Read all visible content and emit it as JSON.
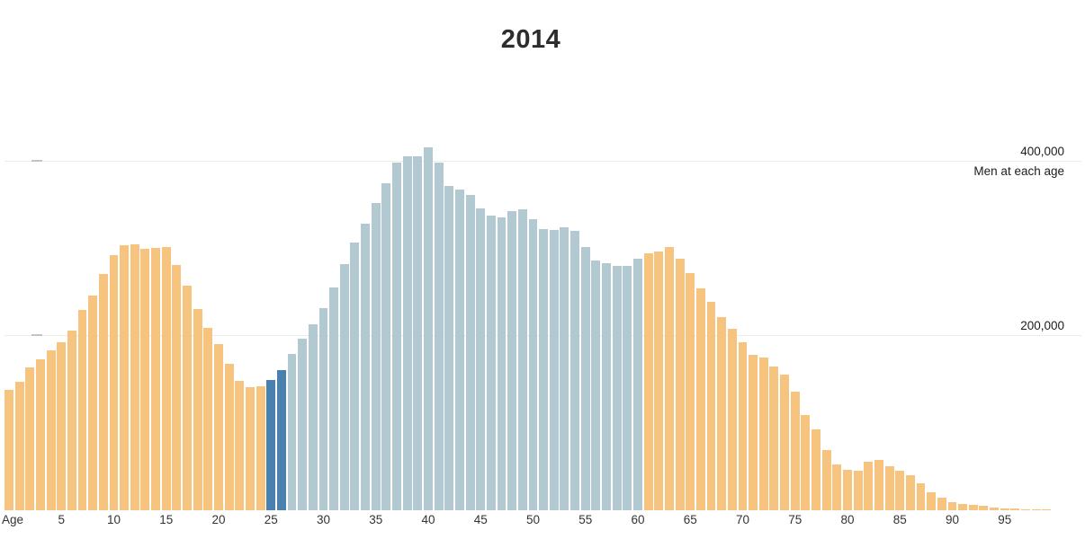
{
  "chart_data": {
    "type": "bar",
    "title": "2014",
    "x_origin_label": "Age",
    "x_tick_ages": [
      5,
      10,
      15,
      20,
      25,
      30,
      35,
      40,
      45,
      50,
      55,
      60,
      65,
      70,
      75,
      80,
      85,
      90,
      95
    ],
    "x_tick_labels": [
      "5",
      "10",
      "15",
      "20",
      "25",
      "30",
      "35",
      "40",
      "45",
      "50",
      "55",
      "60",
      "65",
      "70",
      "75",
      "80",
      "85",
      "90",
      "95"
    ],
    "y_ticks": [
      {
        "value": 400000,
        "label": "400,000",
        "sublabel": "Men at each age"
      },
      {
        "value": 200000,
        "label": "200,000"
      }
    ],
    "ylim": [
      0,
      420000
    ],
    "gridlines": true,
    "legend_position": "none",
    "ages": "0-99 (one bar per year of age)",
    "values": [
      137000,
      146500,
      163500,
      172000,
      182500,
      191500,
      205500,
      228500,
      245500,
      270000,
      291000,
      302500,
      304000,
      298500,
      299500,
      300500,
      280000,
      256000,
      229500,
      208000,
      189500,
      167000,
      148000,
      141000,
      142000,
      149000,
      160500,
      178000,
      196000,
      212500,
      231000,
      254000,
      281000,
      305500,
      327500,
      351000,
      373000,
      396500,
      404500,
      404500,
      414500,
      396500,
      370500,
      366000,
      360000,
      344500,
      336000,
      334500,
      342000,
      344000,
      332500,
      321500,
      320500,
      323000,
      319000,
      300500,
      285000,
      282000,
      279500,
      278500,
      287000,
      293000,
      295500,
      300500,
      287000,
      271000,
      253000,
      237500,
      220500,
      207000,
      192000,
      177000,
      174000,
      164500,
      154500,
      135500,
      109000,
      92000,
      69000,
      52000,
      46500,
      45000,
      55000,
      57000,
      50500,
      45500,
      40000,
      31000,
      20500,
      14000,
      9000,
      7000,
      6000,
      5000,
      3500,
      2500,
      2000,
      1500,
      1200,
      1000
    ],
    "segments": [
      {
        "from": 0,
        "to": 24,
        "color_key": "orange"
      },
      {
        "from": 25,
        "to": 26,
        "color_key": "dark_blue"
      },
      {
        "from": 27,
        "to": 60,
        "color_key": "light_blue"
      },
      {
        "from": 61,
        "to": 99,
        "color_key": "orange"
      }
    ],
    "colors": {
      "orange": "#f7c480",
      "dark_blue": "#4a80ae",
      "light_blue": "#b2c9d1"
    },
    "gridline_color": "#ececec",
    "title_color": "#2d2d2d",
    "axis_text_color": "#333333"
  }
}
